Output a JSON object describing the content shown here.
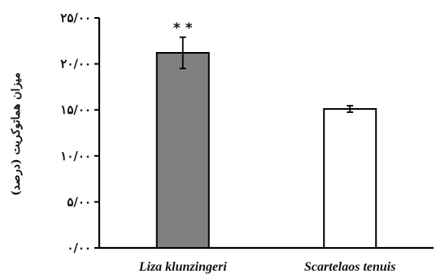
{
  "chart_data": {
    "type": "bar",
    "categories": [
      "Liza klunzingeri",
      "Scartelaos tenuis"
    ],
    "values": [
      21.2,
      15.1
    ],
    "errors": [
      1.7,
      0.35
    ],
    "bar_colors": [
      "#808080",
      "#ffffff"
    ],
    "bar_stroke": "#000000",
    "annotations": [
      "* *",
      ""
    ],
    "ylabel": "میزان هماتوکریت (درصد)",
    "ylim": [
      0,
      25
    ],
    "yticks": [
      0,
      5,
      10,
      15,
      20,
      25
    ],
    "ytick_labels": [
      "۰/۰۰",
      "۵/۰۰",
      "۱۰/۰۰",
      "۱۵/۰۰",
      "۲۰/۰۰",
      "۲۵/۰۰"
    ],
    "grid": false,
    "legend": "none"
  }
}
